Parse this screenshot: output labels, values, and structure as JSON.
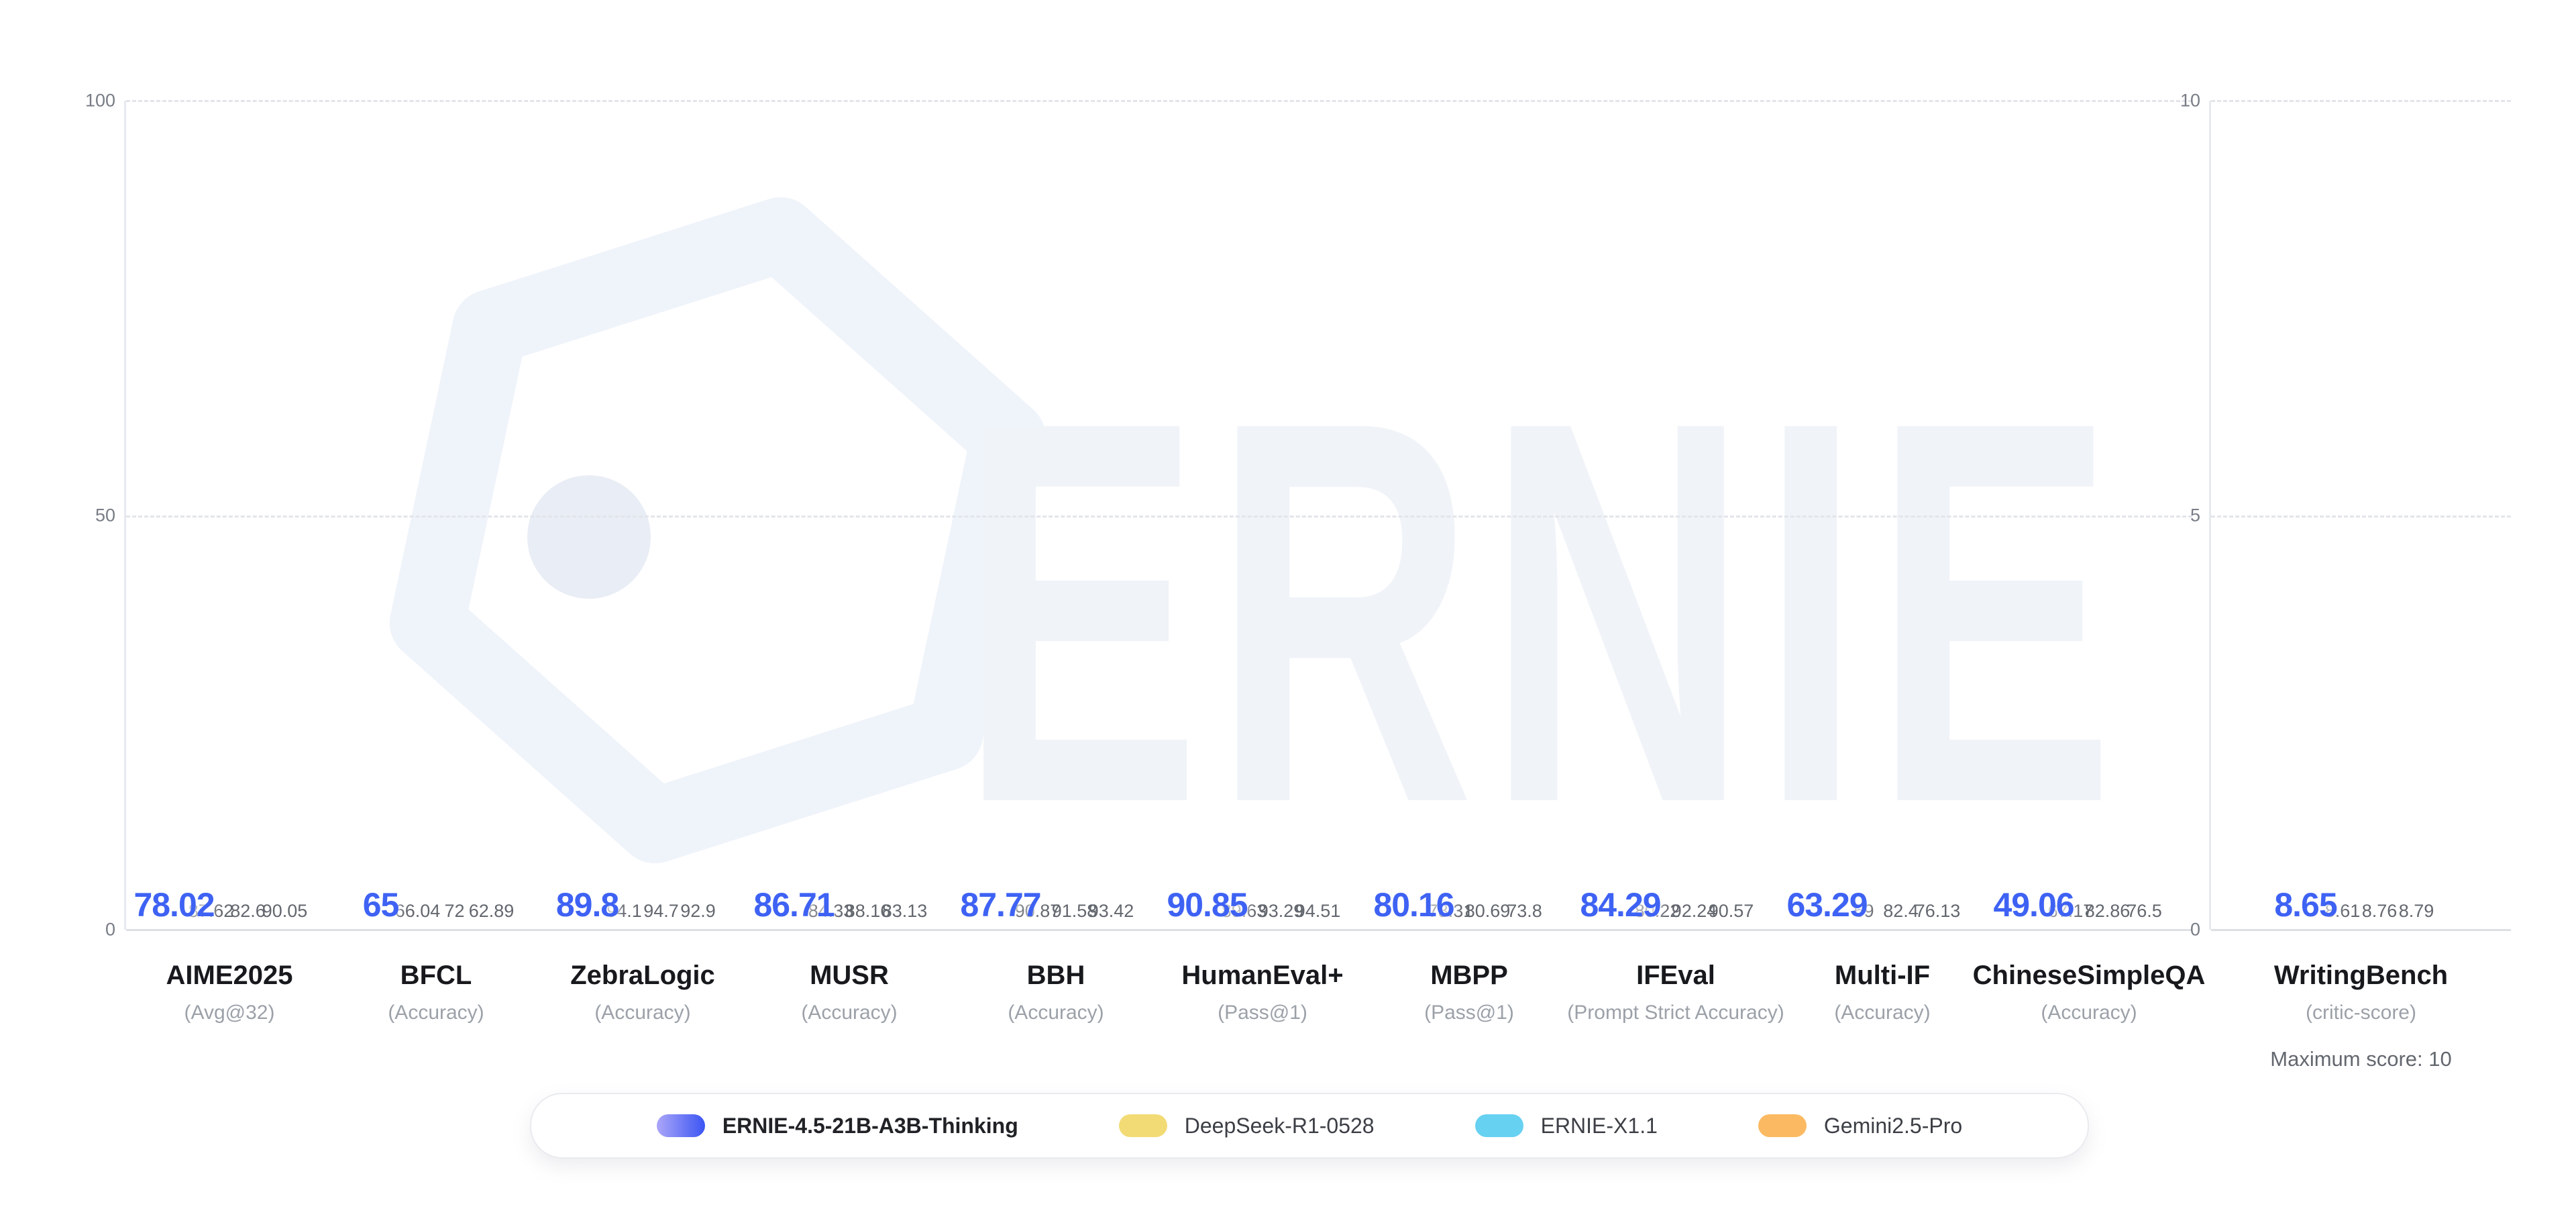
{
  "watermark": {
    "text": "ERNIE"
  },
  "colors": {
    "highlight_label": "#3E62F3",
    "label_gray": "#63676E",
    "tick_gray": "#787D86",
    "grid": "#E2E5EA",
    "axis": "#DCDFE4",
    "watermark": "#F0F3F8"
  },
  "series": [
    {
      "name": "ERNIE-4.5-21B-A3B-Thinking",
      "highlight": true,
      "gradient": [
        "#2D54F0",
        "#4C5FF2",
        "#8A82F5",
        "#B3A6F8",
        "#F3EFFE"
      ],
      "swatch_gradient": [
        "#ABA6F8",
        "#3B55F3"
      ]
    },
    {
      "name": "DeepSeek-R1-0528",
      "color": "#F2DB75"
    },
    {
      "name": "ERNIE-X1.1",
      "color": "#67D1F1"
    },
    {
      "name": "Gemini2.5-Pro",
      "color": "#FBBA62"
    }
  ],
  "legend": {
    "items": [
      {
        "label": "ERNIE-4.5-21B-A3B-Thinking",
        "emphasis": true
      },
      {
        "label": "DeepSeek-R1-0528",
        "emphasis": false
      },
      {
        "label": "ERNIE-X1.1",
        "emphasis": false
      },
      {
        "label": "Gemini2.5-Pro",
        "emphasis": false
      }
    ]
  },
  "chart_data": [
    {
      "type": "bar",
      "title": "",
      "ylim": [
        0,
        100
      ],
      "yticks": [
        100,
        50,
        0
      ],
      "grid": "dashed horizontal at 50 and 100",
      "legend_position": "bottom",
      "series_names": [
        "ERNIE-4.5-21B-A3B-Thinking",
        "DeepSeek-R1-0528",
        "ERNIE-X1.1",
        "Gemini2.5-Pro"
      ],
      "categories": [
        {
          "label": "AIME2025",
          "metric": "(Avg@32)"
        },
        {
          "label": "BFCL",
          "metric": "(Accuracy)"
        },
        {
          "label": "ZebraLogic",
          "metric": "(Accuracy)"
        },
        {
          "label": "MUSR",
          "metric": "(Accuracy)"
        },
        {
          "label": "BBH",
          "metric": "(Accuracy)"
        },
        {
          "label": "HumanEval+",
          "metric": "(Pass@1)"
        },
        {
          "label": "MBPP",
          "metric": "(Pass@1)"
        },
        {
          "label": "IFEval",
          "metric": "(Prompt Strict Accuracy)"
        },
        {
          "label": "Multi-IF",
          "metric": "(Accuracy)"
        },
        {
          "label": "ChineseSimpleQA",
          "metric": "(Accuracy)"
        }
      ],
      "values": [
        [
          78.02,
          87.62,
          82.6,
          90.05
        ],
        [
          65,
          66.04,
          72,
          62.89
        ],
        [
          89.8,
          94.1,
          94.7,
          92.9
        ],
        [
          86.71,
          84.33,
          88.16,
          83.13
        ],
        [
          87.77,
          90.87,
          91.58,
          93.42
        ],
        [
          90.85,
          89.63,
          93.29,
          94.51
        ],
        [
          80.16,
          78.31,
          80.69,
          73.8
        ],
        [
          84.29,
          80.22,
          92.24,
          90.57
        ],
        [
          63.29,
          69,
          82.4,
          76.13
        ],
        [
          49.06,
          67.17,
          82.86,
          76.5
        ]
      ]
    },
    {
      "type": "bar",
      "title": "",
      "ylim": [
        0,
        10
      ],
      "yticks": [
        10,
        5,
        0
      ],
      "grid": "dashed horizontal at 5 and 10",
      "series_names": [
        "ERNIE-4.5-21B-A3B-Thinking",
        "DeepSeek-R1-0528",
        "ERNIE-X1.1",
        "Gemini2.5-Pro"
      ],
      "categories": [
        {
          "label": "WritingBench",
          "metric": "(critic-score)",
          "note": "Maximum score: 10"
        }
      ],
      "values": [
        [
          8.65,
          8.61,
          8.76,
          8.79
        ]
      ]
    }
  ]
}
